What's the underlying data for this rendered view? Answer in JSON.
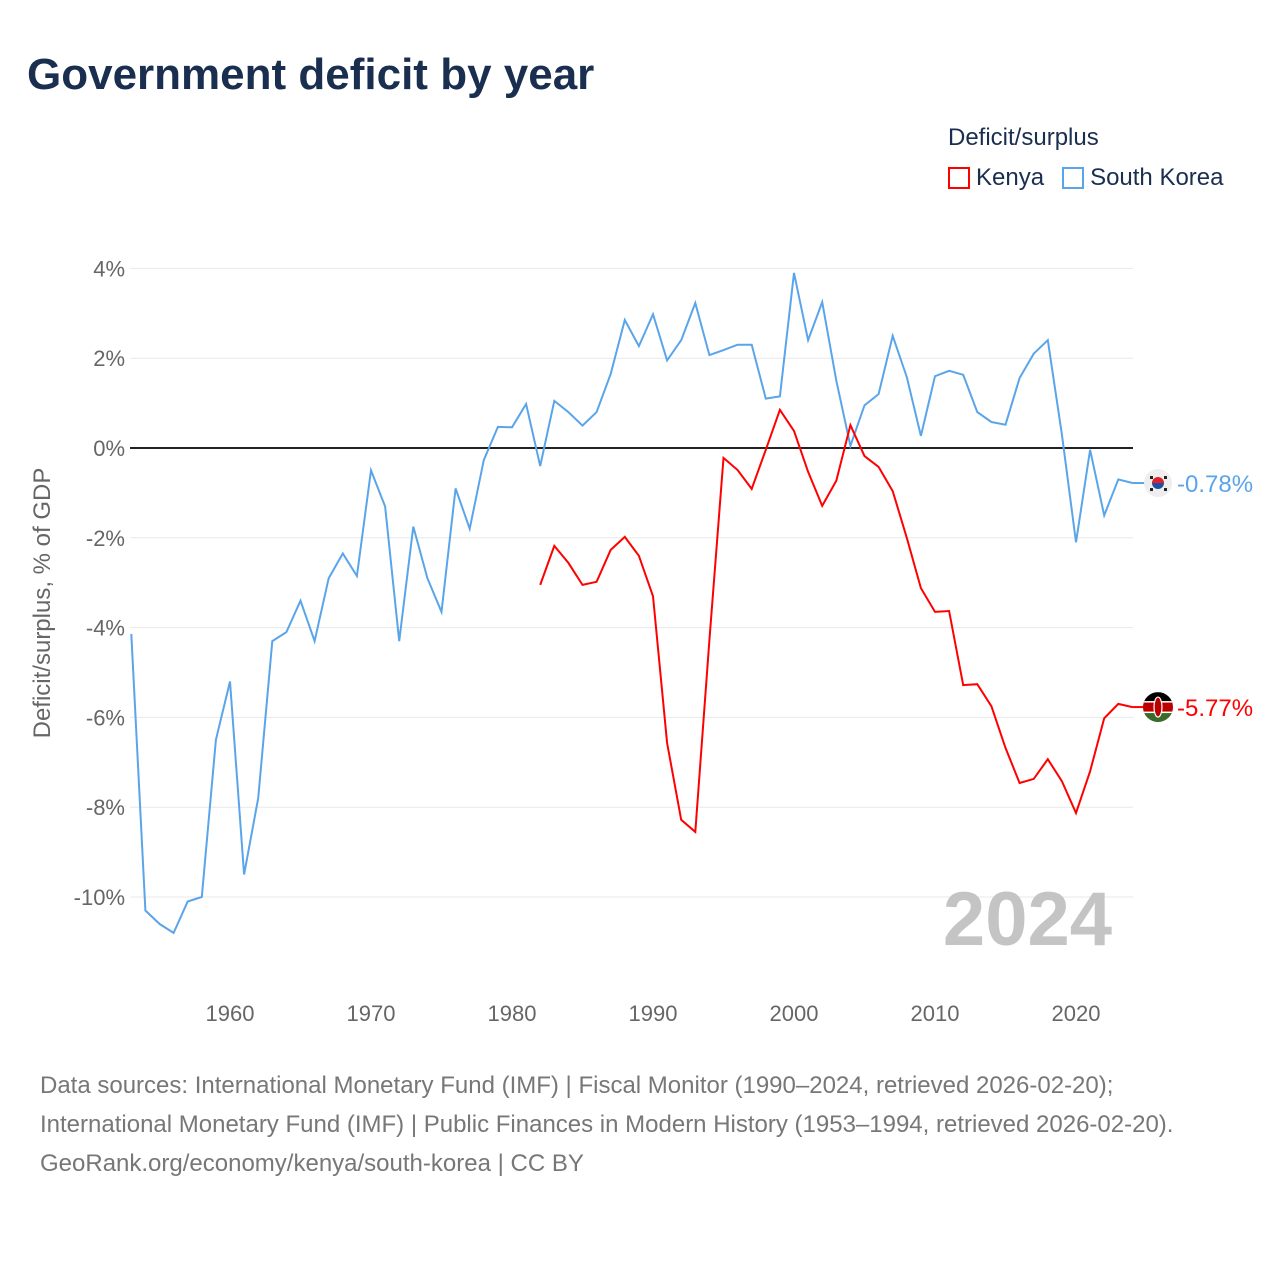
{
  "title": "Government deficit by year",
  "legend": {
    "title": "Deficit/surplus",
    "items": [
      {
        "name": "Kenya",
        "color": "#ff0000"
      },
      {
        "name": "South Korea",
        "color": "#5aa5ea"
      }
    ]
  },
  "footer": {
    "sources": "Data sources: International Monetary Fund (IMF) | Fiscal Monitor (1990–2024, retrieved 2026-02-20); International Monetary Fund (IMF) | Public Finances in Modern History (1953–1994, retrieved 2026-02-20).",
    "credit": "GeoRank.org/economy/kenya/south-korea | CC BY"
  },
  "chart_data": {
    "type": "line",
    "title": "Government deficit by year",
    "ylabel": "Deficit/surplus, % of GDP",
    "xlabel": "",
    "xlim": [
      1953,
      2024.4
    ],
    "ylim": [
      -11.8,
      4.5
    ],
    "yticks": [
      4,
      2,
      0,
      -2,
      -4,
      -6,
      -8,
      -10
    ],
    "ytick_labels": [
      "4%",
      "2%",
      "0%",
      "-2%",
      "-4%",
      "-6%",
      "-8%",
      "-10%"
    ],
    "xticks": [
      1960,
      1970,
      1980,
      1990,
      2000,
      2010,
      2020
    ],
    "xtick_labels": [
      "1960",
      "1970",
      "1980",
      "1990",
      "2000",
      "2010",
      "2020"
    ],
    "year_watermark": "2024",
    "grid": true,
    "series": [
      {
        "name": "South Korea",
        "color": "#5aa5ea",
        "end_label": "-0.78%",
        "start_year": 1953,
        "values": [
          -4.14,
          -10.3,
          -10.6,
          -10.8,
          -10.1,
          -10.0,
          -6.5,
          -5.2,
          -9.5,
          -7.8,
          -4.3,
          -4.1,
          -3.4,
          -4.3,
          -2.9,
          -2.35,
          -2.85,
          -0.5,
          -1.3,
          -4.3,
          -1.75,
          -2.9,
          -3.65,
          -0.9,
          -1.8,
          -0.27,
          0.47,
          0.46,
          0.98,
          -0.4,
          1.05,
          0.8,
          0.5,
          0.8,
          1.65,
          2.85,
          2.27,
          2.98,
          1.95,
          2.4,
          3.23,
          2.07,
          2.18,
          2.3,
          2.3,
          1.1,
          1.15,
          3.9,
          2.4,
          3.25,
          1.5,
          0.05,
          0.95,
          1.2,
          2.5,
          1.58,
          0.27,
          1.6,
          1.72,
          1.63,
          0.8,
          0.58,
          0.52,
          1.56,
          2.1,
          2.4,
          0.3,
          -2.1,
          -0.04,
          -1.5,
          -0.7,
          -0.78
        ]
      },
      {
        "name": "Kenya",
        "color": "#ff0000",
        "end_label": "-5.77%",
        "start_year": 1982,
        "values": [
          -3.05,
          -2.18,
          -2.56,
          -3.05,
          -2.98,
          -2.27,
          -1.98,
          -2.4,
          -3.3,
          -6.57,
          -8.28,
          -8.55,
          -4.28,
          -0.22,
          -0.49,
          -0.91,
          -0.04,
          0.85,
          0.38,
          -0.53,
          -1.29,
          -0.73,
          0.51,
          -0.18,
          -0.42,
          -0.96,
          -2.0,
          -3.12,
          -3.65,
          -3.63,
          -5.28,
          -5.26,
          -5.75,
          -6.68,
          -7.46,
          -7.37,
          -6.93,
          -7.42,
          -8.13,
          -7.2,
          -6.02,
          -5.7,
          -5.77
        ]
      }
    ]
  }
}
